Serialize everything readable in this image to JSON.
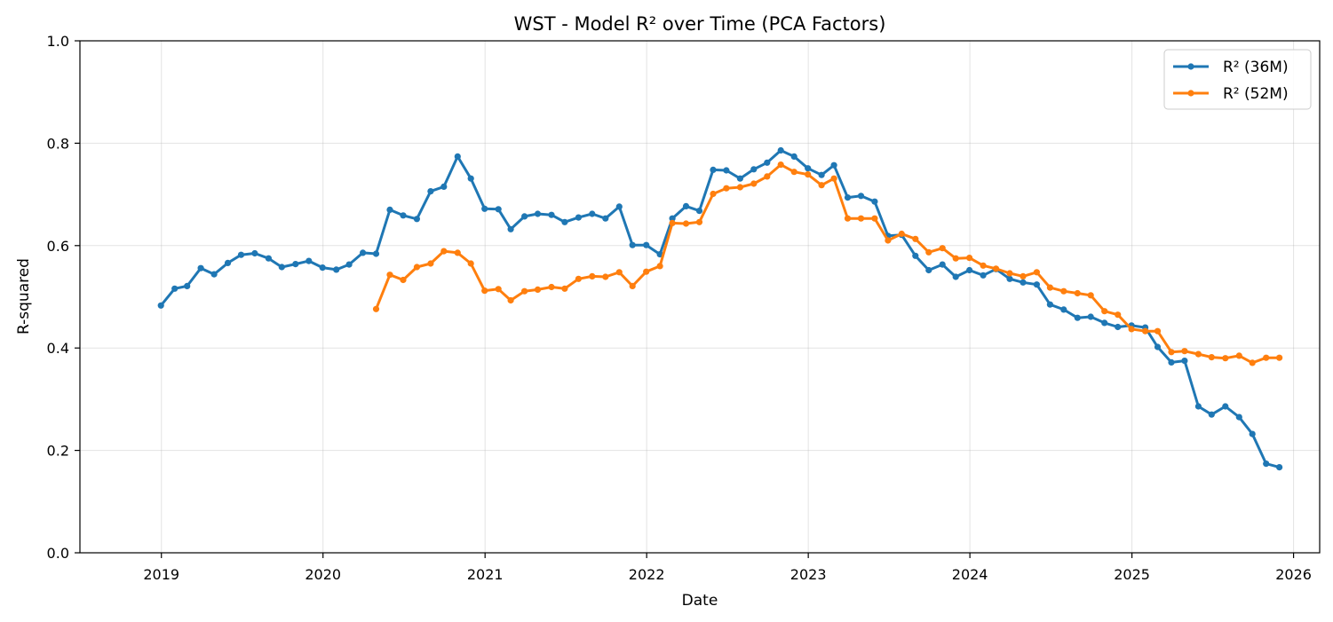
{
  "chart_data": {
    "type": "line",
    "title": "WST - Model R² over Time (PCA Factors)",
    "xlabel": "Date",
    "ylabel": "R-squared",
    "ylim": [
      0,
      1
    ],
    "xlim": [
      "2018-07-01",
      "2026-03-01"
    ],
    "x_ticks": [
      "2019",
      "2020",
      "2021",
      "2022",
      "2023",
      "2024",
      "2025",
      "2026"
    ],
    "y_ticks": [
      "0.0",
      "0.2",
      "0.4",
      "0.6",
      "0.8",
      "1.0"
    ],
    "grid": true,
    "legend_position": "top-right",
    "colors": {
      "r2_36m": "#1f77b4",
      "r2_52m": "#ff7f0e"
    },
    "series": [
      {
        "name": "R² (36M)",
        "color": "#1f77b4",
        "points": [
          [
            "2018-12",
            0.483
          ],
          [
            "2019-01",
            0.516
          ],
          [
            "2019-02",
            0.521
          ],
          [
            "2019-03",
            0.556
          ],
          [
            "2019-04",
            0.544
          ],
          [
            "2019-05",
            0.566
          ],
          [
            "2019-06",
            0.582
          ],
          [
            "2019-07",
            0.585
          ],
          [
            "2019-08",
            0.575
          ],
          [
            "2019-09",
            0.558
          ],
          [
            "2019-10",
            0.564
          ],
          [
            "2019-11",
            0.57
          ],
          [
            "2019-12",
            0.557
          ],
          [
            "2020-01",
            0.553
          ],
          [
            "2020-02",
            0.563
          ],
          [
            "2020-03",
            0.586
          ],
          [
            "2020-04",
            0.584
          ],
          [
            "2020-05",
            0.67
          ],
          [
            "2020-06",
            0.659
          ],
          [
            "2020-07",
            0.652
          ],
          [
            "2020-08",
            0.706
          ],
          [
            "2020-09",
            0.715
          ],
          [
            "2020-10",
            0.774
          ],
          [
            "2020-11",
            0.731
          ],
          [
            "2020-12",
            0.672
          ],
          [
            "2021-01",
            0.671
          ],
          [
            "2021-02",
            0.632
          ],
          [
            "2021-03",
            0.657
          ],
          [
            "2021-04",
            0.662
          ],
          [
            "2021-05",
            0.66
          ],
          [
            "2021-06",
            0.646
          ],
          [
            "2021-07",
            0.655
          ],
          [
            "2021-08",
            0.662
          ],
          [
            "2021-09",
            0.653
          ],
          [
            "2021-10",
            0.676
          ],
          [
            "2021-11",
            0.601
          ],
          [
            "2021-12",
            0.601
          ],
          [
            "2022-01",
            0.583
          ],
          [
            "2022-02",
            0.653
          ],
          [
            "2022-03",
            0.677
          ],
          [
            "2022-04",
            0.668
          ],
          [
            "2022-05",
            0.748
          ],
          [
            "2022-06",
            0.747
          ],
          [
            "2022-07",
            0.731
          ],
          [
            "2022-08",
            0.749
          ],
          [
            "2022-09",
            0.762
          ],
          [
            "2022-10",
            0.786
          ],
          [
            "2022-11",
            0.774
          ],
          [
            "2022-12",
            0.751
          ],
          [
            "2023-01",
            0.738
          ],
          [
            "2023-02",
            0.757
          ],
          [
            "2023-03",
            0.694
          ],
          [
            "2023-04",
            0.697
          ],
          [
            "2023-05",
            0.686
          ],
          [
            "2023-06",
            0.619
          ],
          [
            "2023-07",
            0.621
          ],
          [
            "2023-08",
            0.58
          ],
          [
            "2023-09",
            0.552
          ],
          [
            "2023-10",
            0.563
          ],
          [
            "2023-11",
            0.539
          ],
          [
            "2023-12",
            0.552
          ],
          [
            "2024-01",
            0.542
          ],
          [
            "2024-02",
            0.554
          ],
          [
            "2024-03",
            0.535
          ],
          [
            "2024-04",
            0.528
          ],
          [
            "2024-05",
            0.524
          ],
          [
            "2024-06",
            0.485
          ],
          [
            "2024-07",
            0.475
          ],
          [
            "2024-08",
            0.459
          ],
          [
            "2024-09",
            0.461
          ],
          [
            "2024-10",
            0.449
          ],
          [
            "2024-11",
            0.441
          ],
          [
            "2024-12",
            0.444
          ],
          [
            "2025-01",
            0.44
          ],
          [
            "2025-02",
            0.402
          ],
          [
            "2025-03",
            0.372
          ],
          [
            "2025-04",
            0.375
          ],
          [
            "2025-05",
            0.286
          ],
          [
            "2025-06",
            0.27
          ],
          [
            "2025-07",
            0.286
          ],
          [
            "2025-08",
            0.265
          ],
          [
            "2025-09",
            0.232
          ],
          [
            "2025-10",
            0.174
          ],
          [
            "2025-11",
            0.167
          ]
        ]
      },
      {
        "name": "R² (52M)",
        "color": "#ff7f0e",
        "points": [
          [
            "2020-04",
            0.476
          ],
          [
            "2020-05",
            0.543
          ],
          [
            "2020-06",
            0.533
          ],
          [
            "2020-07",
            0.558
          ],
          [
            "2020-08",
            0.565
          ],
          [
            "2020-09",
            0.589
          ],
          [
            "2020-10",
            0.586
          ],
          [
            "2020-11",
            0.565
          ],
          [
            "2020-12",
            0.512
          ],
          [
            "2021-01",
            0.515
          ],
          [
            "2021-02",
            0.493
          ],
          [
            "2021-03",
            0.511
          ],
          [
            "2021-04",
            0.514
          ],
          [
            "2021-05",
            0.519
          ],
          [
            "2021-06",
            0.516
          ],
          [
            "2021-07",
            0.535
          ],
          [
            "2021-08",
            0.54
          ],
          [
            "2021-09",
            0.539
          ],
          [
            "2021-10",
            0.548
          ],
          [
            "2021-11",
            0.521
          ],
          [
            "2021-12",
            0.549
          ],
          [
            "2022-01",
            0.56
          ],
          [
            "2022-02",
            0.644
          ],
          [
            "2022-03",
            0.643
          ],
          [
            "2022-04",
            0.646
          ],
          [
            "2022-05",
            0.701
          ],
          [
            "2022-06",
            0.712
          ],
          [
            "2022-07",
            0.714
          ],
          [
            "2022-08",
            0.721
          ],
          [
            "2022-09",
            0.735
          ],
          [
            "2022-10",
            0.758
          ],
          [
            "2022-11",
            0.744
          ],
          [
            "2022-12",
            0.739
          ],
          [
            "2023-01",
            0.718
          ],
          [
            "2023-02",
            0.731
          ],
          [
            "2023-03",
            0.653
          ],
          [
            "2023-04",
            0.653
          ],
          [
            "2023-05",
            0.653
          ],
          [
            "2023-06",
            0.61
          ],
          [
            "2023-07",
            0.623
          ],
          [
            "2023-08",
            0.613
          ],
          [
            "2023-09",
            0.587
          ],
          [
            "2023-10",
            0.595
          ],
          [
            "2023-11",
            0.575
          ],
          [
            "2023-12",
            0.576
          ],
          [
            "2024-01",
            0.561
          ],
          [
            "2024-02",
            0.555
          ],
          [
            "2024-03",
            0.546
          ],
          [
            "2024-04",
            0.54
          ],
          [
            "2024-05",
            0.548
          ],
          [
            "2024-06",
            0.518
          ],
          [
            "2024-07",
            0.511
          ],
          [
            "2024-08",
            0.507
          ],
          [
            "2024-09",
            0.503
          ],
          [
            "2024-10",
            0.472
          ],
          [
            "2024-11",
            0.465
          ],
          [
            "2024-12",
            0.437
          ],
          [
            "2025-01",
            0.433
          ],
          [
            "2025-02",
            0.433
          ],
          [
            "2025-03",
            0.392
          ],
          [
            "2025-04",
            0.394
          ],
          [
            "2025-05",
            0.388
          ],
          [
            "2025-06",
            0.382
          ],
          [
            "2025-07",
            0.38
          ],
          [
            "2025-08",
            0.385
          ],
          [
            "2025-09",
            0.371
          ],
          [
            "2025-10",
            0.381
          ],
          [
            "2025-11",
            0.381
          ]
        ]
      }
    ]
  }
}
